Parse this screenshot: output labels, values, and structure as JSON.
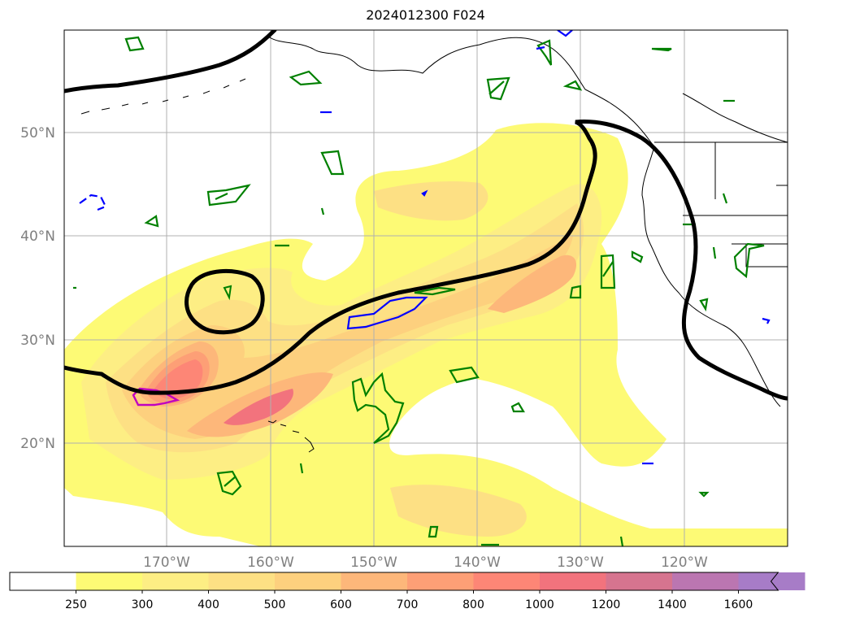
{
  "title": "2024012300 F024",
  "map": {
    "lat_labels": [
      "50°N",
      "40°N",
      "30°N",
      "20°N"
    ],
    "lon_labels": [
      "170°W",
      "160°W",
      "150°W",
      "140°W",
      "130°W",
      "120°W"
    ]
  },
  "colorbar": {
    "ticks": [
      "250",
      "300",
      "400",
      "500",
      "600",
      "700",
      "800",
      "1000",
      "1200",
      "1400",
      "1600"
    ],
    "colors": [
      "#ffffff",
      "#fdfa75",
      "#fdee84",
      "#fde084",
      "#fdd07e",
      "#fdb77a",
      "#fd9f76",
      "#fd8676",
      "#f2737d",
      "#d6748f",
      "#bb76b1",
      "#a77cc7"
    ],
    "extend": "max"
  },
  "contour_colors": {
    "height_line": "#000000",
    "green_contours": "#008000",
    "blue_contours": "#0000ff",
    "magenta_contours": "#c000c0"
  }
}
